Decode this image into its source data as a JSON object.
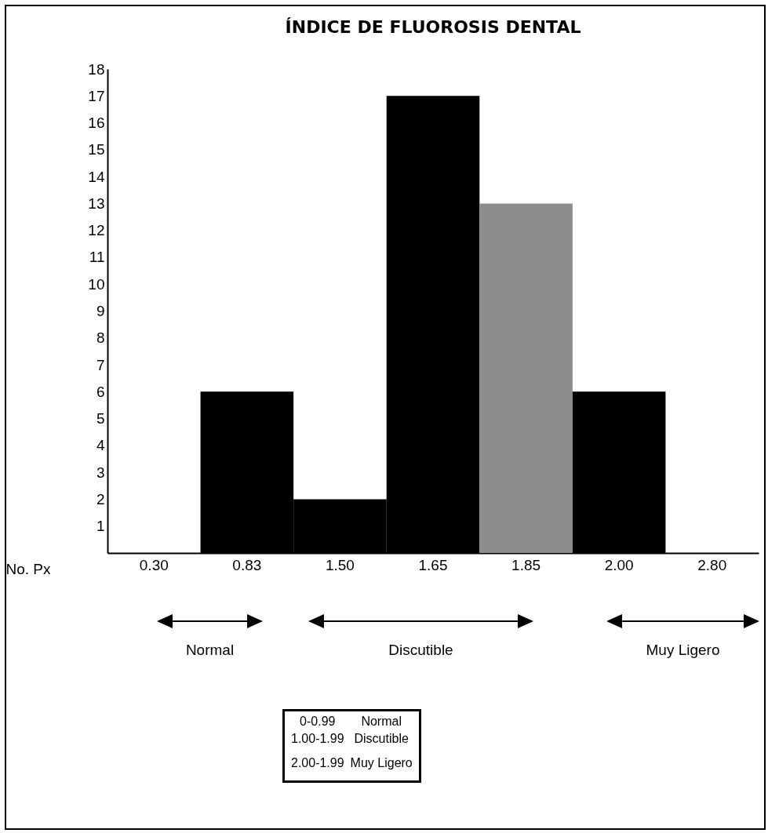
{
  "chart_data": {
    "type": "bar",
    "title": "ÍNDICE DE FLUOROSIS DENTAL",
    "ylabel": "No. Px",
    "categories": [
      "0.30",
      "0.83",
      "1.50",
      "1.65",
      "1.85",
      "2.00",
      "2.80"
    ],
    "values": [
      0,
      6,
      2,
      17,
      13,
      6,
      0
    ],
    "colors": [
      "#000000",
      "#000000",
      "#000000",
      "#000000",
      "#8c8c8c",
      "#000000",
      "#000000"
    ],
    "ylim": [
      0,
      18
    ],
    "yticks": [
      1,
      2,
      3,
      4,
      5,
      6,
      7,
      8,
      9,
      10,
      11,
      12,
      13,
      14,
      15,
      16,
      17,
      18
    ],
    "grid": false,
    "legend": false,
    "annotations": [
      "Normal",
      "Discutible",
      "Muy Ligero",
      "0-0.99",
      "Normal",
      "1.00-1.99",
      "Discutible",
      "2.00-1.99",
      "Muy Ligero"
    ]
  }
}
